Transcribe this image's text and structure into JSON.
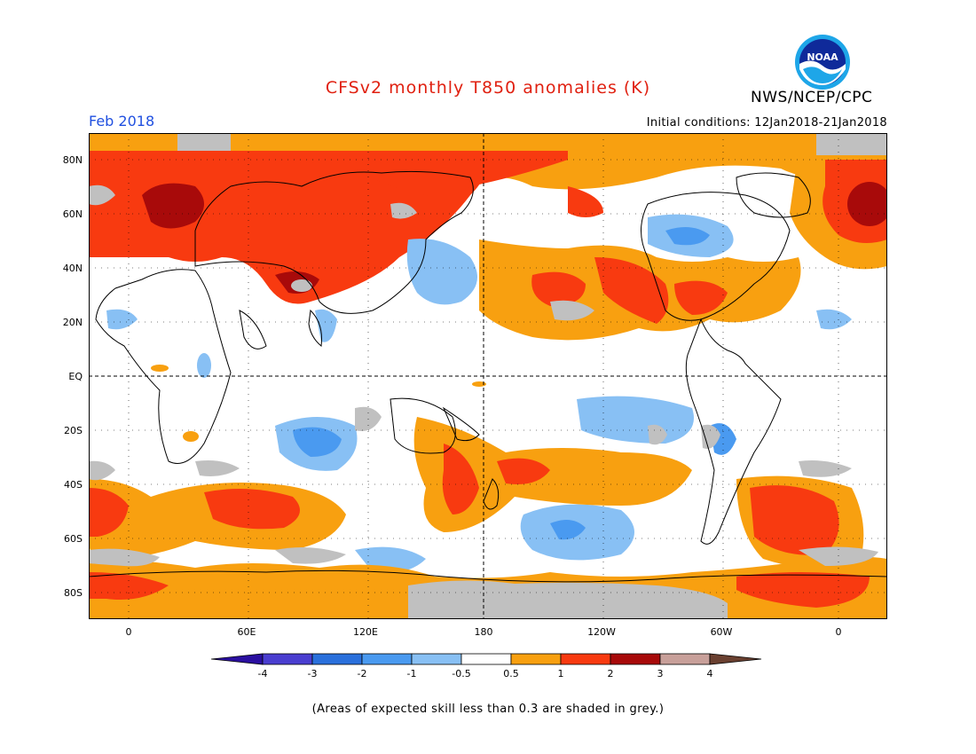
{
  "title": "CFSv2 monthly T850 anomalies (K)",
  "agency": "NWS/NCEP/CPC",
  "logo_text": "NOAA",
  "valid_month": "Feb 2018",
  "initial_conditions": "Initial conditions: 12Jan2018-21Jan2018",
  "lat_labels": [
    "80N",
    "60N",
    "40N",
    "20N",
    "EQ",
    "20S",
    "40S",
    "60S",
    "80S"
  ],
  "lon_labels": [
    "0",
    "60E",
    "120E",
    "180",
    "120W",
    "60W",
    "0"
  ],
  "colorbar": {
    "labels": [
      "-4",
      "-3",
      "-2",
      "-1",
      "-0.5",
      "0.5",
      "1",
      "2",
      "3",
      "4"
    ],
    "colors": [
      "#2a0fa0",
      "#4a3ed0",
      "#2a70dc",
      "#4a9af0",
      "#88c0f4",
      "#ffffff",
      "#f8a010",
      "#f83a10",
      "#a80a0a",
      "#c8a09a",
      "#6a4030"
    ]
  },
  "skill_mask_color": "#c0c0c0",
  "footnote": "(Areas of expected skill less than 0.3 are shaded in grey.)"
}
